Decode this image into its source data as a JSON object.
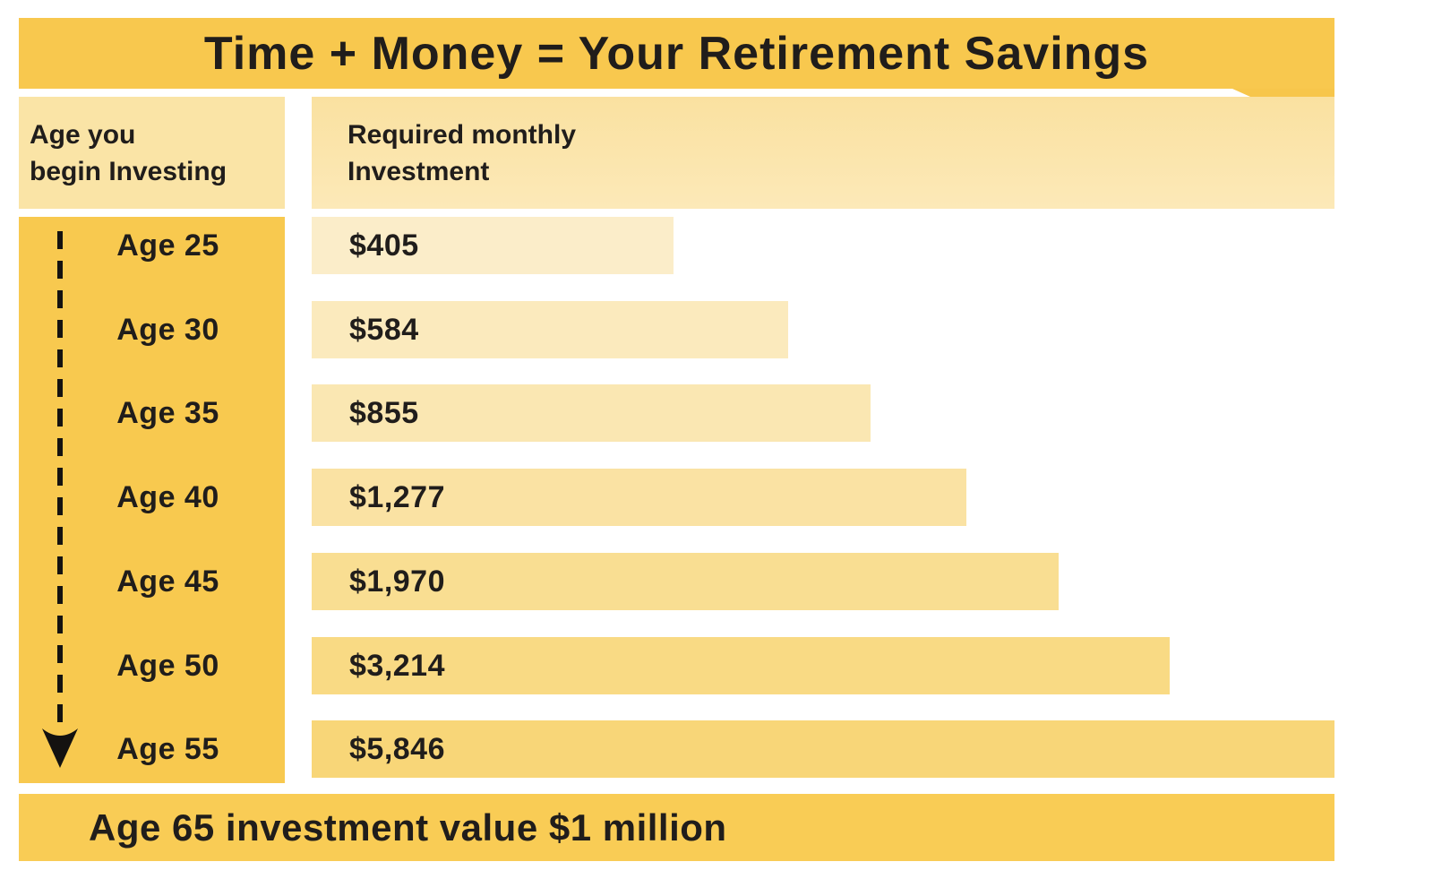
{
  "title_bar": {
    "text": "Time + Money = Your Retirement Savings",
    "bg_color": "#F8C84E",
    "text_color": "#201D1B"
  },
  "headers": {
    "left_column": {
      "line1": "Age you",
      "line2": "begin Investing",
      "bg_color": "#FAE4A6"
    },
    "right_column": {
      "line1": "Required monthly",
      "line2": "Investment",
      "bg_top": "#FAE1A0",
      "bg_bottom": "#FCE9B8"
    }
  },
  "age_column": {
    "bg_color": "#F8C94F",
    "arrow_icon": "dashed-down-arrow",
    "arrow_color": "#141210"
  },
  "chart_data": {
    "type": "bar",
    "orientation": "horizontal",
    "title": "Time + Money = Your Retirement Savings",
    "categories": [
      "Age 25",
      "Age 30",
      "Age 35",
      "Age 40",
      "Age 45",
      "Age 50",
      "Age 55"
    ],
    "values": [
      405,
      584,
      855,
      1277,
      1970,
      3214,
      5846
    ],
    "value_labels": [
      "$405",
      "$584",
      "$855",
      "$1,277",
      "$1,970",
      "$3,214",
      "$5,846"
    ],
    "series_name": "Required monthly Investment",
    "category_axis_label": "Age you begin Investing",
    "footnote": "Age 65 investment value $1 million",
    "scale": "logarithmic-appearance",
    "bar_width_pct": [
      35.4,
      46.6,
      54.6,
      64.0,
      73.0,
      83.9,
      100
    ],
    "bar_colors": [
      "#FBEDC9",
      "#FBEABD",
      "#FAE7B2",
      "#FAE2A3",
      "#F9DE92",
      "#F9DA84",
      "#F8D678"
    ],
    "grid": false,
    "legend": false
  },
  "footer_banner": {
    "text": "Age 65 investment value $1 million",
    "bg_color": "#F9CC55"
  }
}
